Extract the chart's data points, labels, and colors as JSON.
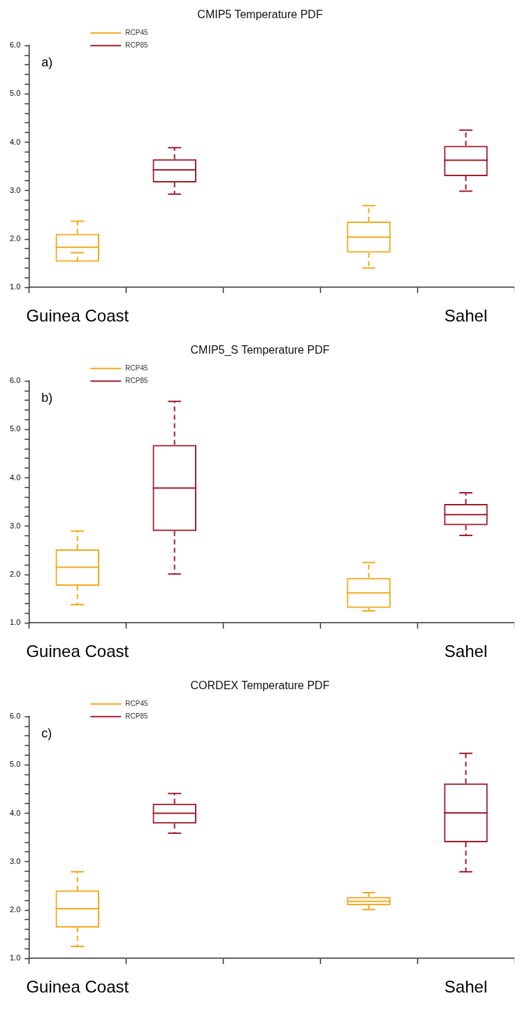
{
  "chart_data": [
    {
      "type": "box",
      "title": "CMIP5 Temperature PDF",
      "annotations": [
        "a)"
      ],
      "categories": [
        "Guinea Coast",
        null,
        null,
        null,
        "Sahel"
      ],
      "ylim": [
        1,
        6
      ],
      "yticks": [
        {
          "value": 1,
          "label": "1.0"
        },
        {
          "value": 1.2,
          "label": null
        },
        {
          "value": 1.4,
          "label": null
        },
        {
          "value": 1.6,
          "label": null
        },
        {
          "value": 1.8,
          "label": null
        },
        {
          "value": 2,
          "label": "2.0"
        },
        {
          "value": 2.2,
          "label": null
        },
        {
          "value": 2.4,
          "label": null
        },
        {
          "value": 2.6,
          "label": null
        },
        {
          "value": 2.8,
          "label": null
        },
        {
          "value": 3,
          "label": "3.0"
        },
        {
          "value": 3.2,
          "label": null
        },
        {
          "value": 3.4,
          "label": null
        },
        {
          "value": 3.6,
          "label": null
        },
        {
          "value": 3.8,
          "label": null
        },
        {
          "value": 4,
          "label": "4.0"
        },
        {
          "value": 4.2,
          "label": null
        },
        {
          "value": 4.4,
          "label": null
        },
        {
          "value": 4.6,
          "label": null
        },
        {
          "value": 4.8,
          "label": null
        },
        {
          "value": 5,
          "label": "5.0"
        },
        {
          "value": 5.2,
          "label": null
        },
        {
          "value": 5.4,
          "label": null
        },
        {
          "value": 5.6,
          "label": null
        },
        {
          "value": 5.8,
          "label": null
        },
        {
          "value": 6,
          "label": "6.0"
        }
      ],
      "grid": false,
      "legend": "top left",
      "line_style": "dashed",
      "series": [
        {
          "name": "RCP45",
          "color": "#f2a91e",
          "boxes": [
            {
              "low": 1.72,
              "q1": 1.53,
              "median": 1.83,
              "q3": 2.11,
              "high": 2.37
            },
            null,
            null,
            {
              "low": 1.4,
              "q1": 1.72,
              "median": 2.04,
              "q3": 2.36,
              "high": 2.69
            },
            null
          ]
        },
        {
          "name": "RCP85",
          "color": "#a11c2a",
          "boxes": [
            null,
            {
              "low": 2.93,
              "q1": 3.17,
              "median": 3.43,
              "q3": 3.65,
              "high": 3.89
            },
            null,
            null,
            {
              "low": 2.99,
              "q1": 3.3,
              "median": 3.63,
              "q3": 3.93,
              "high": 4.25
            }
          ]
        }
      ]
    },
    {
      "type": "box",
      "title": "CMIP5_S Temperature PDF",
      "annotations": [
        "b)"
      ],
      "categories": [
        "Guinea Coast",
        null,
        null,
        null,
        "Sahel"
      ],
      "ylim": [
        1,
        6
      ],
      "yticks": [
        {
          "value": 1,
          "label": "1.0"
        },
        {
          "value": 1.2,
          "label": null
        },
        {
          "value": 1.4,
          "label": null
        },
        {
          "value": 1.6,
          "label": null
        },
        {
          "value": 1.8,
          "label": null
        },
        {
          "value": 2,
          "label": "2.0"
        },
        {
          "value": 2.2,
          "label": null
        },
        {
          "value": 2.4,
          "label": null
        },
        {
          "value": 2.6,
          "label": null
        },
        {
          "value": 2.8,
          "label": null
        },
        {
          "value": 3,
          "label": "3.0"
        },
        {
          "value": 3.2,
          "label": null
        },
        {
          "value": 3.4,
          "label": null
        },
        {
          "value": 3.6,
          "label": null
        },
        {
          "value": 3.8,
          "label": null
        },
        {
          "value": 4,
          "label": "4.0"
        },
        {
          "value": 4.2,
          "label": null
        },
        {
          "value": 4.4,
          "label": null
        },
        {
          "value": 4.6,
          "label": null
        },
        {
          "value": 4.8,
          "label": null
        },
        {
          "value": 5,
          "label": "5.0"
        },
        {
          "value": 5.2,
          "label": null
        },
        {
          "value": 5.4,
          "label": null
        },
        {
          "value": 5.6,
          "label": null
        },
        {
          "value": 5.8,
          "label": null
        },
        {
          "value": 6,
          "label": "6.0"
        }
      ],
      "grid": false,
      "legend": "top left",
      "line_style": "dashed",
      "series": [
        {
          "name": "RCP45",
          "color": "#f2a91e",
          "boxes": [
            {
              "low": 1.38,
              "q1": 1.77,
              "median": 2.15,
              "q3": 2.52,
              "high": 2.9
            },
            null,
            null,
            {
              "low": 1.25,
              "q1": 1.31,
              "median": 1.62,
              "q3": 1.93,
              "high": 2.25
            },
            null
          ]
        },
        {
          "name": "RCP85",
          "color": "#a11c2a",
          "boxes": [
            null,
            {
              "low": 2.01,
              "q1": 2.9,
              "median": 3.79,
              "q3": 4.68,
              "high": 5.58
            },
            null,
            null,
            {
              "low": 2.81,
              "q1": 3.02,
              "median": 3.24,
              "q3": 3.46,
              "high": 3.69
            }
          ]
        }
      ]
    },
    {
      "type": "box",
      "title": "CORDEX Temperature PDF",
      "annotations": [
        "c)"
      ],
      "categories": [
        "Guinea Coast",
        null,
        null,
        null,
        "Sahel"
      ],
      "ylim": [
        1,
        6
      ],
      "yticks": [
        {
          "value": 1,
          "label": "1.0"
        },
        {
          "value": 1.2,
          "label": null
        },
        {
          "value": 1.4,
          "label": null
        },
        {
          "value": 1.6,
          "label": null
        },
        {
          "value": 1.8,
          "label": null
        },
        {
          "value": 2,
          "label": "2.0"
        },
        {
          "value": 2.2,
          "label": null
        },
        {
          "value": 2.4,
          "label": null
        },
        {
          "value": 2.6,
          "label": null
        },
        {
          "value": 2.8,
          "label": null
        },
        {
          "value": 3,
          "label": "3.0"
        },
        {
          "value": 3.2,
          "label": null
        },
        {
          "value": 3.4,
          "label": null
        },
        {
          "value": 3.6,
          "label": null
        },
        {
          "value": 3.8,
          "label": null
        },
        {
          "value": 4,
          "label": "4.0"
        },
        {
          "value": 4.2,
          "label": null
        },
        {
          "value": 4.4,
          "label": null
        },
        {
          "value": 4.6,
          "label": null
        },
        {
          "value": 4.8,
          "label": null
        },
        {
          "value": 5,
          "label": "5.0"
        },
        {
          "value": 5.2,
          "label": null
        },
        {
          "value": 5.4,
          "label": null
        },
        {
          "value": 5.6,
          "label": null
        },
        {
          "value": 5.8,
          "label": null
        },
        {
          "value": 6,
          "label": "6.0"
        }
      ],
      "grid": false,
      "legend": "top left",
      "line_style": "dashed",
      "series": [
        {
          "name": "RCP45",
          "color": "#f2a91e",
          "boxes": [
            {
              "low": 1.25,
              "q1": 1.64,
              "median": 2.03,
              "q3": 2.41,
              "high": 2.79
            },
            null,
            null,
            {
              "low": 2.01,
              "q1": 2.1,
              "median": 2.18,
              "q3": 2.27,
              "high": 2.36
            },
            null
          ]
        },
        {
          "name": "RCP85",
          "color": "#a11c2a",
          "boxes": [
            null,
            {
              "low": 3.59,
              "q1": 3.79,
              "median": 4.0,
              "q3": 4.2,
              "high": 4.41
            },
            null,
            null,
            {
              "low": 2.79,
              "q1": 3.4,
              "median": 4.01,
              "q3": 4.62,
              "high": 5.24
            }
          ]
        }
      ]
    }
  ]
}
